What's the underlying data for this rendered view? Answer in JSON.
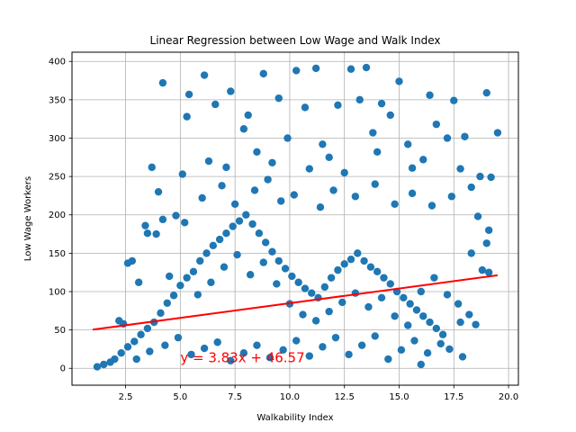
{
  "chart_data": {
    "type": "scatter",
    "title": "Linear Regression between Low Wage and Walk Index",
    "xlabel": "Walkability Index",
    "ylabel": "Low Wage Workers",
    "xlim": [
      0.05,
      20.45
    ],
    "ylim": [
      -22,
      412
    ],
    "x_ticks": [
      2.5,
      5.0,
      7.5,
      10.0,
      12.5,
      15.0,
      17.5,
      20.0
    ],
    "x_tick_labels": [
      "2.5",
      "5.0",
      "7.5",
      "10.0",
      "12.5",
      "15.0",
      "17.5",
      "20.0"
    ],
    "y_ticks": [
      0,
      50,
      100,
      150,
      200,
      250,
      300,
      350,
      400
    ],
    "y_tick_labels": [
      "0",
      "50",
      "100",
      "150",
      "200",
      "250",
      "300",
      "350",
      "400"
    ],
    "grid": true,
    "legend": "none",
    "colors": {
      "points": "#1f77b4",
      "regression": "#ff0000"
    },
    "regression": {
      "slope": 3.83,
      "intercept": 46.57,
      "x_range": [
        1.0,
        19.5
      ]
    },
    "annotation": {
      "text": "y = 3.83x + 46.57",
      "x": 5.0,
      "y": 8
    },
    "points": [
      [
        4.2,
        372
      ],
      [
        6.1,
        382
      ],
      [
        8.8,
        384
      ],
      [
        10.3,
        388
      ],
      [
        11.2,
        391
      ],
      [
        12.8,
        390
      ],
      [
        13.5,
        392
      ],
      [
        19.0,
        359
      ],
      [
        19.5,
        307
      ],
      [
        16.4,
        356
      ],
      [
        17.5,
        349
      ],
      [
        15.0,
        374
      ],
      [
        14.2,
        345
      ],
      [
        5.4,
        357
      ],
      [
        7.3,
        361
      ],
      [
        9.5,
        352
      ],
      [
        6.6,
        344
      ],
      [
        8.1,
        330
      ],
      [
        10.7,
        340
      ],
      [
        12.2,
        343
      ],
      [
        13.2,
        350
      ],
      [
        14.6,
        330
      ],
      [
        16.7,
        318
      ],
      [
        18.0,
        302
      ],
      [
        5.3,
        328
      ],
      [
        7.9,
        312
      ],
      [
        9.9,
        300
      ],
      [
        11.5,
        292
      ],
      [
        13.8,
        307
      ],
      [
        15.4,
        292
      ],
      [
        17.2,
        300
      ],
      [
        18.7,
        250
      ],
      [
        3.7,
        262
      ],
      [
        5.1,
        253
      ],
      [
        4.0,
        230
      ],
      [
        6.3,
        270
      ],
      [
        7.1,
        262
      ],
      [
        8.5,
        282
      ],
      [
        9.2,
        268
      ],
      [
        10.9,
        260
      ],
      [
        11.8,
        275
      ],
      [
        12.5,
        255
      ],
      [
        14.0,
        282
      ],
      [
        15.6,
        261
      ],
      [
        16.1,
        272
      ],
      [
        17.8,
        260
      ],
      [
        18.3,
        236
      ],
      [
        19.2,
        249
      ],
      [
        19.1,
        180
      ],
      [
        18.6,
        198
      ],
      [
        19.0,
        163
      ],
      [
        18.3,
        150
      ],
      [
        18.8,
        128
      ],
      [
        19.1,
        125
      ],
      [
        17.7,
        84
      ],
      [
        17.8,
        60
      ],
      [
        18.2,
        70
      ],
      [
        18.5,
        57
      ],
      [
        17.9,
        15
      ],
      [
        17.3,
        25
      ],
      [
        16.0,
        5
      ],
      [
        2.6,
        137
      ],
      [
        2.8,
        140
      ],
      [
        3.1,
        112
      ],
      [
        3.4,
        186
      ],
      [
        3.5,
        176
      ],
      [
        3.9,
        175
      ],
      [
        4.2,
        194
      ],
      [
        4.8,
        199
      ],
      [
        5.2,
        190
      ],
      [
        2.2,
        62
      ],
      [
        2.4,
        58
      ],
      [
        1.2,
        2
      ],
      [
        1.5,
        5
      ],
      [
        1.8,
        8
      ],
      [
        2.0,
        12
      ],
      [
        2.3,
        20
      ],
      [
        2.6,
        28
      ],
      [
        2.9,
        35
      ],
      [
        3.2,
        44
      ],
      [
        3.5,
        52
      ],
      [
        3.8,
        60
      ],
      [
        4.1,
        72
      ],
      [
        4.4,
        85
      ],
      [
        4.7,
        95
      ],
      [
        5.0,
        108
      ],
      [
        5.3,
        118
      ],
      [
        5.6,
        126
      ],
      [
        5.9,
        140
      ],
      [
        6.2,
        150
      ],
      [
        6.5,
        160
      ],
      [
        6.8,
        168
      ],
      [
        7.1,
        176
      ],
      [
        7.4,
        185
      ],
      [
        7.7,
        192
      ],
      [
        8.0,
        200
      ],
      [
        8.3,
        188
      ],
      [
        8.6,
        176
      ],
      [
        8.9,
        164
      ],
      [
        9.2,
        152
      ],
      [
        9.5,
        140
      ],
      [
        9.8,
        130
      ],
      [
        10.1,
        120
      ],
      [
        10.4,
        112
      ],
      [
        10.7,
        104
      ],
      [
        11.0,
        98
      ],
      [
        11.3,
        92
      ],
      [
        11.6,
        106
      ],
      [
        11.9,
        118
      ],
      [
        12.2,
        128
      ],
      [
        12.5,
        136
      ],
      [
        12.8,
        142
      ],
      [
        13.1,
        150
      ],
      [
        13.4,
        140
      ],
      [
        13.7,
        132
      ],
      [
        14.0,
        126
      ],
      [
        14.3,
        118
      ],
      [
        14.6,
        110
      ],
      [
        14.9,
        100
      ],
      [
        15.2,
        92
      ],
      [
        15.5,
        84
      ],
      [
        15.8,
        76
      ],
      [
        16.1,
        68
      ],
      [
        16.4,
        60
      ],
      [
        16.7,
        52
      ],
      [
        17.0,
        44
      ],
      [
        3.0,
        12
      ],
      [
        3.6,
        22
      ],
      [
        4.3,
        30
      ],
      [
        4.9,
        40
      ],
      [
        5.5,
        18
      ],
      [
        6.1,
        26
      ],
      [
        6.7,
        34
      ],
      [
        7.3,
        10
      ],
      [
        7.9,
        20
      ],
      [
        8.5,
        30
      ],
      [
        9.1,
        14
      ],
      [
        9.7,
        24
      ],
      [
        10.3,
        36
      ],
      [
        10.9,
        16
      ],
      [
        11.5,
        28
      ],
      [
        12.1,
        40
      ],
      [
        12.7,
        18
      ],
      [
        13.3,
        30
      ],
      [
        13.9,
        42
      ],
      [
        14.5,
        12
      ],
      [
        15.1,
        24
      ],
      [
        15.7,
        36
      ],
      [
        16.3,
        20
      ],
      [
        16.9,
        32
      ],
      [
        4.5,
        120
      ],
      [
        5.8,
        96
      ],
      [
        6.4,
        112
      ],
      [
        7.0,
        132
      ],
      [
        7.6,
        148
      ],
      [
        8.2,
        122
      ],
      [
        8.8,
        138
      ],
      [
        9.4,
        110
      ],
      [
        10.0,
        84
      ],
      [
        10.6,
        70
      ],
      [
        11.2,
        62
      ],
      [
        11.8,
        74
      ],
      [
        12.4,
        86
      ],
      [
        13.0,
        98
      ],
      [
        13.6,
        80
      ],
      [
        14.2,
        92
      ],
      [
        14.8,
        68
      ],
      [
        15.4,
        56
      ],
      [
        16.0,
        100
      ],
      [
        16.6,
        118
      ],
      [
        17.2,
        96
      ],
      [
        6.0,
        222
      ],
      [
        6.9,
        238
      ],
      [
        7.5,
        214
      ],
      [
        8.4,
        232
      ],
      [
        9.0,
        246
      ],
      [
        9.6,
        218
      ],
      [
        10.2,
        226
      ],
      [
        11.4,
        210
      ],
      [
        12.0,
        232
      ],
      [
        13.0,
        224
      ],
      [
        13.9,
        240
      ],
      [
        14.8,
        214
      ],
      [
        15.6,
        228
      ],
      [
        16.5,
        212
      ],
      [
        17.4,
        224
      ]
    ]
  }
}
